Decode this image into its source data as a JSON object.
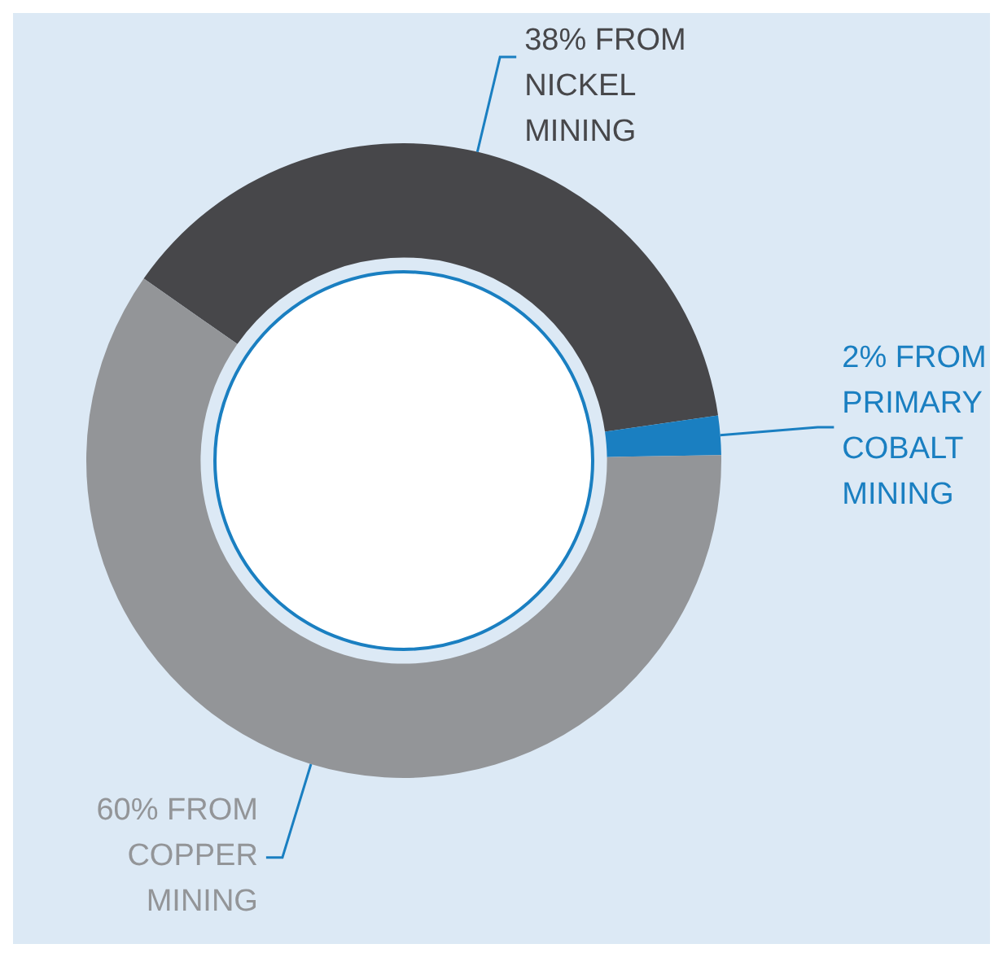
{
  "chart_data": {
    "type": "donut",
    "categories": [
      "38% FROM NICKEL MINING",
      "2% FROM PRIMARY COBALT MINING",
      "60% FROM COPPER MINING"
    ],
    "values": [
      38,
      2,
      60
    ],
    "colors": [
      "#47474a",
      "#1a7fc1",
      "#939598"
    ]
  }
}
